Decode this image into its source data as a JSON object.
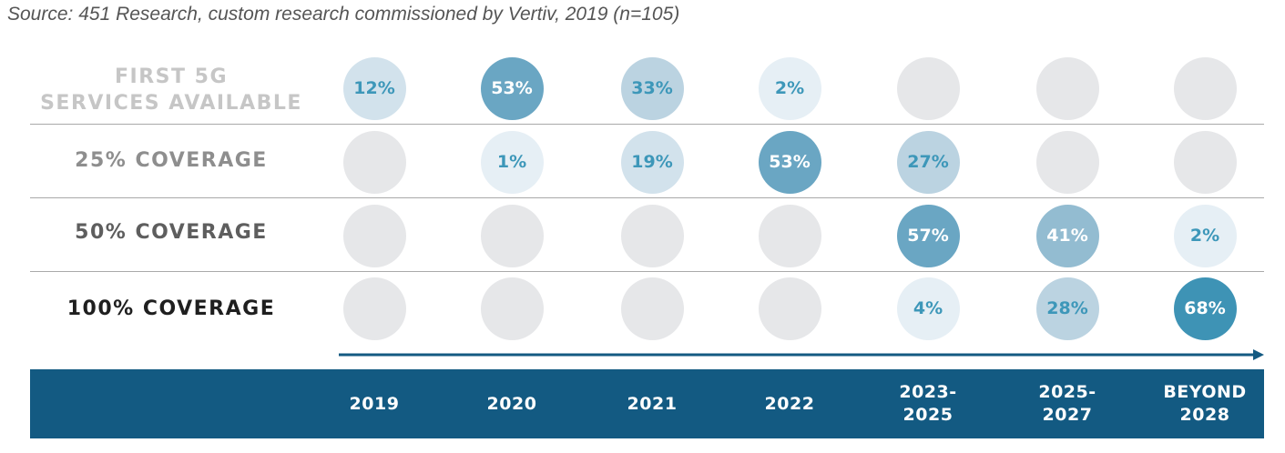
{
  "source": "Source: 451 Research, custom research commissioned by Vertiv, 2019 (n=105)",
  "colors": {
    "empty": "#e6e7e9",
    "axis_band": "#135a82",
    "arrow": "#135a82",
    "separator": "#a9a9a9"
  },
  "chart_data": {
    "type": "heatmap",
    "categories": [
      "2019",
      "2020",
      "2021",
      "2022",
      "2023-\n2025",
      "2025-\n2027",
      "BEYOND\n2028"
    ],
    "rows": [
      {
        "label": "FIRST 5G\nSERVICES AVAILABLE",
        "label_color": "#c6c6c6",
        "values": [
          12,
          53,
          33,
          2,
          null,
          null,
          null
        ]
      },
      {
        "label": "25% COVERAGE",
        "label_color": "#8e8e8e",
        "values": [
          null,
          1,
          19,
          53,
          27,
          null,
          null
        ]
      },
      {
        "label": "50% COVERAGE",
        "label_color": "#5e5e5e",
        "values": [
          null,
          null,
          null,
          null,
          57,
          41,
          2
        ]
      },
      {
        "label": "100% COVERAGE",
        "label_color": "#1f1f1f",
        "values": [
          null,
          null,
          null,
          null,
          4,
          28,
          68
        ]
      }
    ],
    "value_suffix": "%"
  }
}
